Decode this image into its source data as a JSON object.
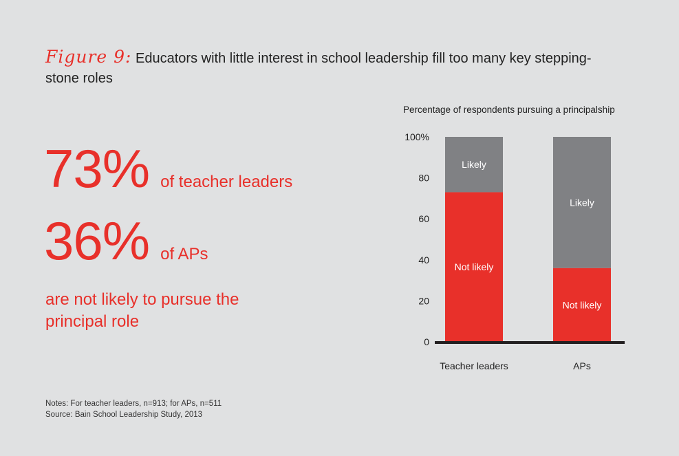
{
  "figure": {
    "label": "Figure 9:",
    "title": "Educators with little interest in school leadership fill too many key stepping-stone roles"
  },
  "stats": [
    {
      "number": "73%",
      "label": "of teacher leaders"
    },
    {
      "number": "36%",
      "label": "of APs"
    }
  ],
  "stats_footer": "are not likely to pursue the principal role",
  "notes": {
    "line1": "Notes: For teacher leaders, n=913; for APs, n=511",
    "line2": "Source: Bain School Leadership Study, 2013"
  },
  "chart_data": {
    "type": "bar",
    "stacked": true,
    "title": "Percentage of respondents pursuing a principalship",
    "categories": [
      "Teacher leaders",
      "APs"
    ],
    "series": [
      {
        "name": "Not likely",
        "values": [
          73,
          36
        ],
        "color": "#e8302a"
      },
      {
        "name": "Likely",
        "values": [
          27,
          64
        ],
        "color": "#808184"
      }
    ],
    "ylim": [
      0,
      100
    ],
    "yticks": [
      "0",
      "20",
      "40",
      "60",
      "80",
      "100%"
    ],
    "grid": false,
    "legend": "none (segment labels inside bars)"
  }
}
